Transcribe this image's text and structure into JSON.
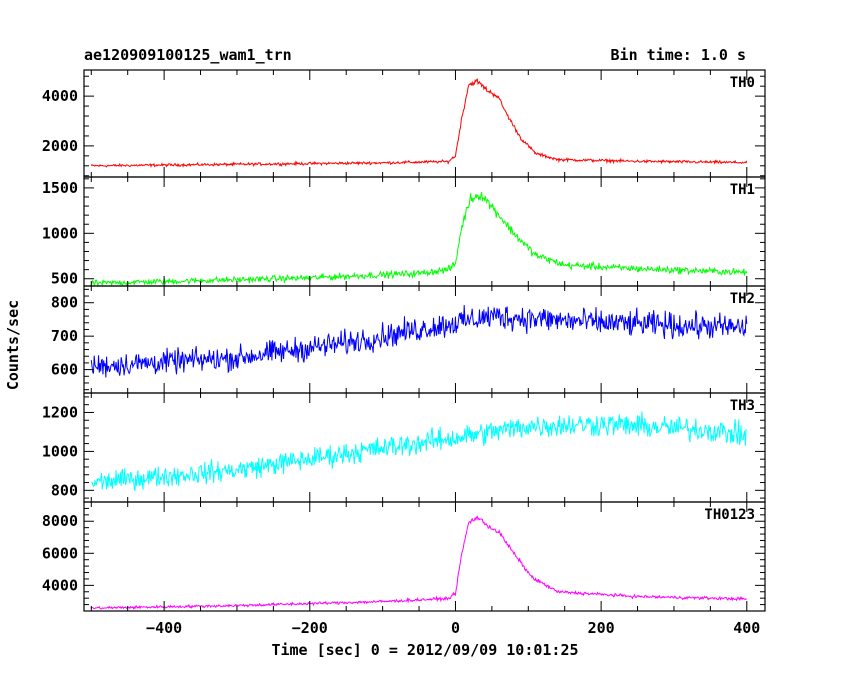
{
  "header": {
    "title": "ae120909100125_wam1_trn",
    "bin_time": "Bin time: 1.0 s"
  },
  "chart_data": {
    "type": "line",
    "xlabel": "Time [sec] 0 = 2012/09/09 10:01:25",
    "ylabel": "Counts/sec",
    "xlim": [
      -510,
      425
    ],
    "x_ticks": [
      -400,
      -200,
      0,
      200,
      400
    ],
    "x_tick_labels": [
      "−400",
      "−200",
      "0",
      "200",
      "400"
    ],
    "x_step": 1,
    "grid": false,
    "panels": [
      {
        "name": "TH0",
        "color": "#ff0000",
        "ylim": [
          750,
          5050
        ],
        "y_ticks": [
          2000,
          4000
        ],
        "y_tick_labels": [
          "2000",
          "4000"
        ],
        "noise": 45,
        "profile": [
          [
            -500,
            1200
          ],
          [
            -300,
            1260
          ],
          [
            -100,
            1320
          ],
          [
            -10,
            1370
          ],
          [
            0,
            1600
          ],
          [
            8,
            3000
          ],
          [
            18,
            4450
          ],
          [
            30,
            4600
          ],
          [
            45,
            4200
          ],
          [
            58,
            4000
          ],
          [
            70,
            3300
          ],
          [
            90,
            2300
          ],
          [
            110,
            1700
          ],
          [
            140,
            1450
          ],
          [
            250,
            1380
          ],
          [
            400,
            1330
          ]
        ]
      },
      {
        "name": "TH1",
        "color": "#00ff00",
        "ylim": [
          420,
          1620
        ],
        "y_ticks": [
          500,
          1000,
          1500
        ],
        "y_tick_labels": [
          "500",
          "1000",
          "1500"
        ],
        "noise": 28,
        "profile": [
          [
            -500,
            450
          ],
          [
            -200,
            510
          ],
          [
            -50,
            560
          ],
          [
            -10,
            600
          ],
          [
            0,
            660
          ],
          [
            8,
            1050
          ],
          [
            20,
            1380
          ],
          [
            35,
            1430
          ],
          [
            55,
            1250
          ],
          [
            80,
            1000
          ],
          [
            110,
            760
          ],
          [
            150,
            650
          ],
          [
            250,
            610
          ],
          [
            400,
            570
          ]
        ]
      },
      {
        "name": "TH2",
        "color": "#0000ff",
        "ylim": [
          530,
          850
        ],
        "y_ticks": [
          600,
          700,
          800
        ],
        "y_tick_labels": [
          "600",
          "700",
          "800"
        ],
        "noise": 30,
        "profile": [
          [
            -500,
            610
          ],
          [
            -300,
            635
          ],
          [
            -150,
            680
          ],
          [
            -50,
            720
          ],
          [
            50,
            760
          ],
          [
            200,
            740
          ],
          [
            400,
            725
          ]
        ]
      },
      {
        "name": "TH3",
        "color": "#00ffff",
        "ylim": [
          740,
          1300
        ],
        "y_ticks": [
          800,
          1000,
          1200
        ],
        "y_tick_labels": [
          "800",
          "1000",
          "1200"
        ],
        "noise": 45,
        "profile": [
          [
            -500,
            840
          ],
          [
            -300,
            905
          ],
          [
            -150,
            990
          ],
          [
            0,
            1070
          ],
          [
            100,
            1130
          ],
          [
            200,
            1140
          ],
          [
            350,
            1110
          ],
          [
            400,
            1080
          ]
        ]
      },
      {
        "name": "TH0123",
        "color": "#ff00ff",
        "ylim": [
          2400,
          9200
        ],
        "y_ticks": [
          4000,
          6000,
          8000
        ],
        "y_tick_labels": [
          "4000",
          "6000",
          "8000"
        ],
        "noise": 70,
        "profile": [
          [
            -500,
            2580
          ],
          [
            -300,
            2740
          ],
          [
            -100,
            2990
          ],
          [
            -10,
            3180
          ],
          [
            0,
            3500
          ],
          [
            8,
            5800
          ],
          [
            18,
            7900
          ],
          [
            30,
            8250
          ],
          [
            45,
            7700
          ],
          [
            60,
            7300
          ],
          [
            80,
            6000
          ],
          [
            105,
            4500
          ],
          [
            140,
            3600
          ],
          [
            250,
            3300
          ],
          [
            400,
            3150
          ]
        ]
      }
    ]
  }
}
